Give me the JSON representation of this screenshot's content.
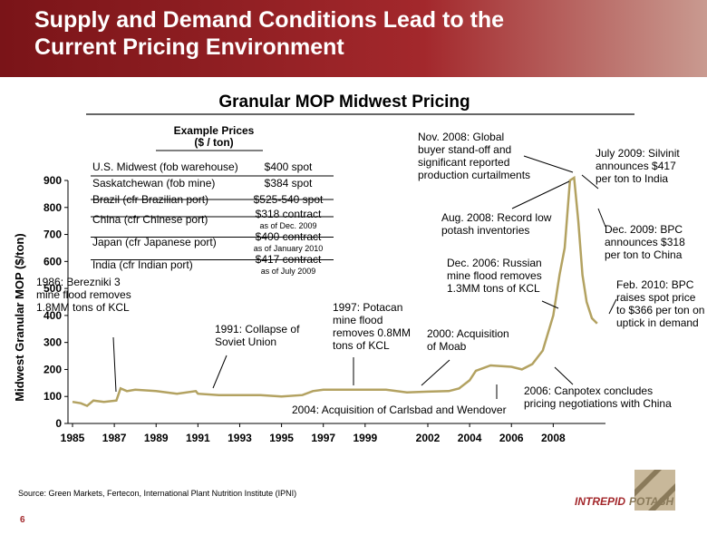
{
  "header": {
    "title_lines": [
      "Supply and Demand Conditions Lead to the",
      "Current Pricing Environment"
    ]
  },
  "chart_data": {
    "type": "line",
    "title": "Granular MOP Midwest Pricing",
    "y_label": "Midwest Granular MOP  ($/ton)",
    "color": "#b3a261",
    "x": [
      1985,
      1985.4,
      1985.7,
      1986,
      1986.5,
      1987.1,
      1987.3,
      1987.6,
      1988,
      1989,
      1990,
      1990.9,
      1991,
      1992,
      1993,
      1994,
      1995,
      1996,
      1996.5,
      1997,
      1998,
      1999,
      2000,
      2001,
      2002,
      2003,
      2003.5,
      2004,
      2004.3,
      2005,
      2006,
      2006.5,
      2007,
      2007.5,
      2008,
      2008.3,
      2008.55,
      2008.8,
      2009,
      2009.2,
      2009.4,
      2009.6,
      2009.85,
      2010.1
    ],
    "values": [
      80,
      75,
      65,
      85,
      80,
      85,
      130,
      120,
      125,
      120,
      110,
      120,
      110,
      105,
      105,
      105,
      100,
      105,
      120,
      125,
      125,
      125,
      125,
      115,
      118,
      120,
      130,
      160,
      195,
      215,
      210,
      200,
      220,
      270,
      400,
      550,
      650,
      900,
      910,
      750,
      550,
      450,
      390,
      370
    ],
    "xlim": [
      1985,
      2010.5
    ],
    "ylim": [
      0,
      900
    ],
    "xticks": [
      1985,
      1987,
      1989,
      1991,
      1993,
      1995,
      1997,
      1999,
      2002,
      2004,
      2006,
      2008
    ],
    "yticks": [
      0,
      100,
      200,
      300,
      400,
      500,
      600,
      700,
      800,
      900
    ],
    "annotations": [
      {
        "lines": [
          "1986: Berezniki 3",
          "mine flood removes",
          "1.8MM tons of KCL"
        ]
      },
      {
        "lines": [
          "1991: Collapse of",
          "Soviet Union"
        ]
      },
      {
        "lines": [
          "1997: Potacan",
          "mine flood",
          "removes 0.8MM",
          "tons of KCL"
        ]
      },
      {
        "lines": [
          "2000: Acquisition",
          "of Moab"
        ]
      },
      {
        "lines": [
          "2004: Acquisition of Carlsbad and Wendover"
        ]
      },
      {
        "lines": [
          "2006: Canpotex concludes",
          "pricing negotiations with China"
        ]
      },
      {
        "lines": [
          "Dec. 2006: Russian",
          "mine flood removes",
          "1.3MM tons of KCL"
        ]
      },
      {
        "lines": [
          "Aug. 2008: Record low",
          "potash inventories"
        ]
      },
      {
        "lines": [
          "Nov. 2008: Global",
          "buyer stand-off and",
          "significant reported",
          "production curtailments"
        ]
      },
      {
        "lines": [
          "July 2009: Silvinit",
          "announces $417",
          "per ton to India"
        ]
      },
      {
        "lines": [
          "Dec.  2009: BPC",
          "announces $318",
          "per ton to China"
        ]
      },
      {
        "lines": [
          "Feb. 2010: BPC",
          "raises spot price",
          "to $366 per ton on",
          "uptick in demand"
        ]
      }
    ],
    "inset_table": {
      "title_lines": [
        "Example Prices",
        "($ / ton)"
      ],
      "rows": [
        [
          "U.S. Midwest (fob warehouse)",
          "$400 spot"
        ],
        [
          "Saskatchewan (fob mine)",
          "$384 spot"
        ],
        [
          "Brazil (cfr Brazilian port)",
          "$525-540 spot"
        ],
        [
          "China (cfr Chinese port)",
          "$318 contract",
          "as of Dec. 2009"
        ],
        [
          "Japan (cfr Japanese port)",
          "$400 contract",
          "as of January 2010"
        ],
        [
          "India (cfr Indian port)",
          "$417 contract",
          "as of July 2009"
        ]
      ]
    }
  },
  "footer": {
    "source": "Source: Green Markets, Fertecon, International Plant Nutrition Institute (IPNI)",
    "page": "6",
    "logo_left": "INTREPID",
    "logo_right": "POTASH"
  }
}
